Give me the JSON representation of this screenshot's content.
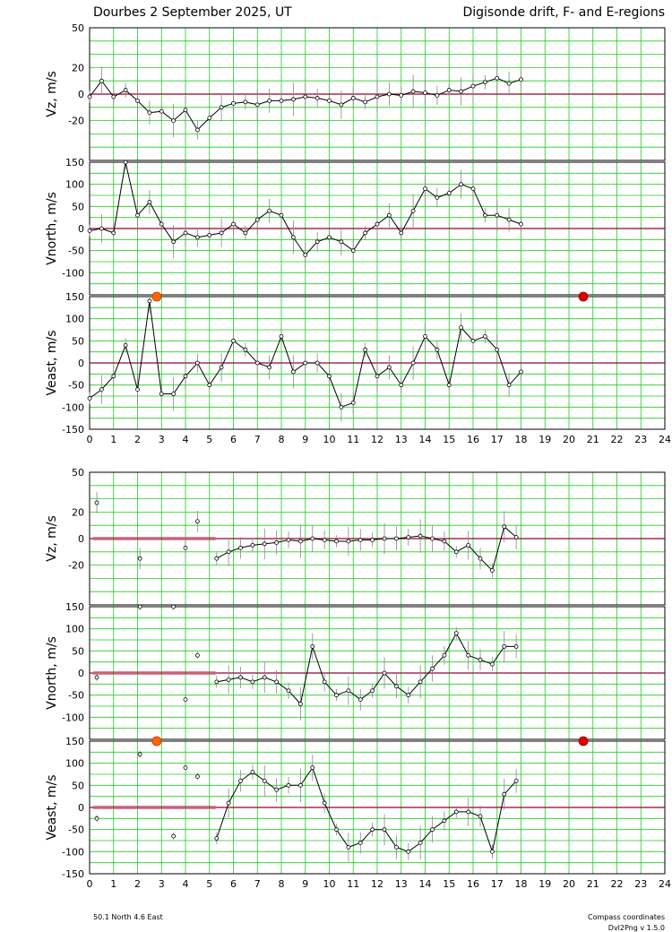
{
  "header": {
    "title_left": "Dourbes  2 September 2025, UT",
    "title_right": "Digisonde drift, F- and E-regions"
  },
  "footer": {
    "location": "50.1 North   4.6 East",
    "coords": "Compass coordinates",
    "version": "Dvl2Png v 1.5.0"
  },
  "colors": {
    "grid": "#22cc22",
    "zero_line": "#990033",
    "series_line": "#000000",
    "error_bar": "#888888",
    "point_fill": "#ffffff",
    "missing_point": "#cc6677",
    "sunrise": "#ff6600",
    "sunset": "#dd0000"
  },
  "chart_data": [
    {
      "type": "scatter",
      "block": "F-region",
      "x_range": [
        0,
        24
      ],
      "x_ticks": [
        "0",
        "1",
        "2",
        "3",
        "4",
        "5",
        "6",
        "7",
        "8",
        "9",
        "10",
        "11",
        "12",
        "13",
        "14",
        "15",
        "16",
        "17",
        "18",
        "19",
        "20",
        "21",
        "22",
        "23",
        "24"
      ],
      "sunrise_hour": 2.8,
      "sunset_hour": 20.6,
      "panels": [
        {
          "ylabel": "Vz, m/s",
          "ylim": [
            -50,
            50
          ],
          "yticks": [
            "50",
            "20",
            "0",
            "-20"
          ],
          "series": [
            {
              "x": [
                0,
                0.5,
                1,
                1.5,
                2,
                2.5,
                3,
                3.5,
                4,
                4.5,
                5,
                5.5,
                6,
                6.5,
                7,
                7.5,
                8,
                8.5,
                9,
                9.5,
                10,
                10.5,
                11,
                11.5,
                12,
                12.5,
                13,
                13.5,
                14,
                14.5,
                15,
                15.5,
                16,
                16.5,
                17,
                17.5,
                18
              ],
              "y": [
                -2,
                10,
                -2,
                3,
                -5,
                -14,
                -13,
                -20,
                -12,
                -27,
                -18,
                -10,
                -7,
                -6,
                -8,
                -5,
                -5,
                -4,
                -2,
                -3,
                -5,
                -8,
                -3,
                -6,
                -2,
                0,
                -1,
                2,
                1,
                -1,
                3,
                2,
                6,
                9,
                12,
                8,
                11
              ]
            }
          ]
        },
        {
          "ylabel": "Vnorth, m/s",
          "ylim": [
            -150,
            150
          ],
          "yticks": [
            "150",
            "100",
            "50",
            "0",
            "-50",
            "-100"
          ],
          "series": [
            {
              "x": [
                0,
                0.5,
                1,
                1.5,
                2,
                2.5,
                3,
                3.5,
                4,
                4.5,
                5,
                5.5,
                6,
                6.5,
                7,
                7.5,
                8,
                8.5,
                9,
                9.5,
                10,
                10.5,
                11,
                11.5,
                12,
                12.5,
                13,
                13.5,
                14,
                14.5,
                15,
                15.5,
                16,
                16.5,
                17,
                17.5,
                18
              ],
              "y": [
                -5,
                0,
                -10,
                150,
                30,
                60,
                10,
                -30,
                -10,
                -20,
                -15,
                -10,
                10,
                -10,
                20,
                40,
                30,
                -20,
                -60,
                -30,
                -20,
                -30,
                -50,
                -10,
                10,
                30,
                -10,
                40,
                90,
                70,
                80,
                100,
                90,
                30,
                30,
                20,
                10
              ]
            }
          ]
        },
        {
          "ylabel": "Veast, m/s",
          "ylim": [
            -150,
            150
          ],
          "yticks": [
            "150",
            "100",
            "50",
            "0",
            "-50",
            "-100",
            "-150"
          ],
          "series": [
            {
              "x": [
                0,
                0.5,
                1,
                1.5,
                2,
                2.5,
                3,
                3.5,
                4,
                4.5,
                5,
                5.5,
                6,
                6.5,
                7,
                7.5,
                8,
                8.5,
                9,
                9.5,
                10,
                10.5,
                11,
                11.5,
                12,
                12.5,
                13,
                13.5,
                14,
                14.5,
                15,
                15.5,
                16,
                16.5,
                17,
                17.5,
                18
              ],
              "y": [
                -80,
                -60,
                -30,
                40,
                -60,
                140,
                -70,
                -70,
                -30,
                0,
                -50,
                -10,
                50,
                30,
                0,
                -10,
                60,
                -20,
                0,
                0,
                -30,
                -100,
                -90,
                30,
                -30,
                -10,
                -50,
                0,
                60,
                30,
                -50,
                80,
                50,
                60,
                30,
                -50,
                -20
              ]
            }
          ]
        }
      ]
    },
    {
      "type": "scatter",
      "block": "E-region",
      "x_range": [
        0,
        24
      ],
      "x_ticks": [
        "0",
        "1",
        "2",
        "3",
        "4",
        "5",
        "6",
        "7",
        "8",
        "9",
        "10",
        "11",
        "12",
        "13",
        "14",
        "15",
        "16",
        "17",
        "18",
        "19",
        "20",
        "21",
        "22",
        "23",
        "24"
      ],
      "sunrise_hour": 2.8,
      "sunset_hour": 20.6,
      "panels": [
        {
          "ylabel": "Vz, m/s",
          "ylim": [
            -50,
            50
          ],
          "yticks": [
            "50",
            "20",
            "0",
            "-20"
          ],
          "series": [
            {
              "x": [
                5.3,
                5.8,
                6.3,
                6.8,
                7.3,
                7.8,
                8.3,
                8.8,
                9.3,
                9.8,
                10.3,
                10.8,
                11.3,
                11.8,
                12.3,
                12.8,
                13.3,
                13.8,
                14.3,
                14.8,
                15.3,
                15.8,
                16.3,
                16.8,
                17.3,
                17.8
              ],
              "y": [
                -15,
                -10,
                -7,
                -5,
                -4,
                -3,
                -1,
                -2,
                0,
                -1,
                -2,
                -2,
                -1,
                -1,
                0,
                0,
                1,
                2,
                0,
                -2,
                -10,
                -5,
                -15,
                -24,
                9,
                1
              ]
            }
          ],
          "isolated_points": {
            "x": [
              0.3,
              2.1,
              4,
              4.5
            ],
            "y": [
              27,
              -15,
              -7,
              13
            ]
          }
        },
        {
          "ylabel": "Vnorth, m/s",
          "ylim": [
            -150,
            150
          ],
          "yticks": [
            "150",
            "100",
            "50",
            "0",
            "-50",
            "-100"
          ],
          "series": [
            {
              "x": [
                5.3,
                5.8,
                6.3,
                6.8,
                7.3,
                7.8,
                8.3,
                8.8,
                9.3,
                9.8,
                10.3,
                10.8,
                11.3,
                11.8,
                12.3,
                12.8,
                13.3,
                13.8,
                14.3,
                14.8,
                15.3,
                15.8,
                16.3,
                16.8,
                17.3,
                17.8
              ],
              "y": [
                -20,
                -15,
                -10,
                -20,
                -10,
                -20,
                -40,
                -70,
                60,
                -20,
                -50,
                -40,
                -60,
                -40,
                0,
                -30,
                -50,
                -20,
                10,
                40,
                90,
                40,
                30,
                20,
                60,
                60
              ]
            }
          ],
          "isolated_points": {
            "x": [
              0.3,
              2.1,
              3.5,
              4,
              4.5
            ],
            "y": [
              -10,
              150,
              150,
              -60,
              40
            ]
          }
        },
        {
          "ylabel": "Veast, m/s",
          "ylim": [
            -150,
            150
          ],
          "yticks": [
            "150",
            "100",
            "50",
            "0",
            "-50",
            "-100",
            "-150"
          ],
          "series": [
            {
              "x": [
                5.3,
                5.8,
                6.3,
                6.8,
                7.3,
                7.8,
                8.3,
                8.8,
                9.3,
                9.8,
                10.3,
                10.8,
                11.3,
                11.8,
                12.3,
                12.8,
                13.3,
                13.8,
                14.3,
                14.8,
                15.3,
                15.8,
                16.3,
                16.8,
                17.3,
                17.8
              ],
              "y": [
                -70,
                10,
                60,
                80,
                60,
                40,
                50,
                50,
                90,
                10,
                -50,
                -90,
                -80,
                -50,
                -50,
                -90,
                -100,
                -80,
                -50,
                -30,
                -10,
                -10,
                -20,
                -100,
                30,
                60
              ]
            }
          ],
          "isolated_points": {
            "x": [
              0.3,
              2.1,
              3.5,
              4,
              4.5
            ],
            "y": [
              -25,
              120,
              -65,
              90,
              70
            ]
          }
        }
      ]
    }
  ]
}
